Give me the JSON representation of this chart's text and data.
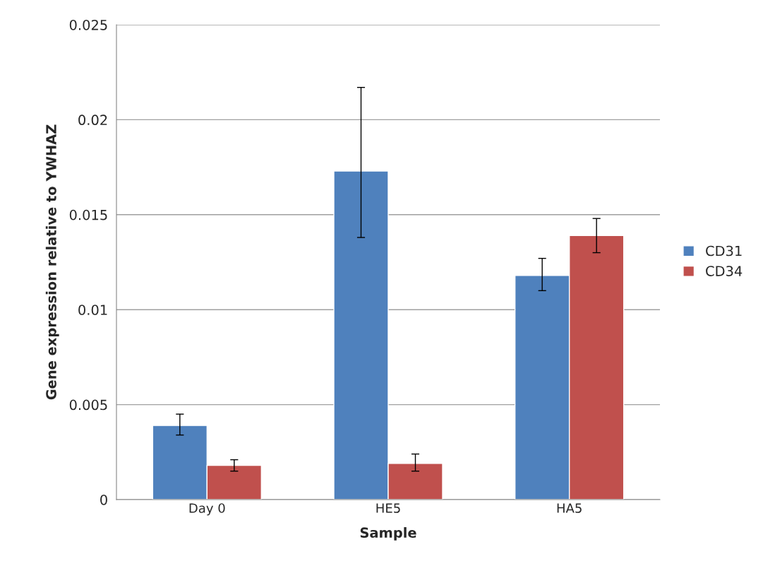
{
  "chart_data": {
    "type": "bar",
    "xlabel": "Sample",
    "ylabel": "Gene expression relative to YWHAZ",
    "categories": [
      "Day 0",
      "HE5",
      "HA5"
    ],
    "series": [
      {
        "name": "CD31",
        "color": "#4f81bd",
        "values": [
          0.0039,
          0.0173,
          0.0118
        ],
        "errors": [
          [
            0.0034,
            0.0045
          ],
          [
            0.0138,
            0.0217
          ],
          [
            0.011,
            0.0127
          ]
        ]
      },
      {
        "name": "CD34",
        "color": "#c0504d",
        "values": [
          0.0018,
          0.0019,
          0.0139
        ],
        "errors": [
          [
            0.0015,
            0.0021
          ],
          [
            0.0015,
            0.0024
          ],
          [
            0.013,
            0.0148
          ]
        ]
      }
    ],
    "ylim": [
      0,
      0.025
    ],
    "yticks": [
      0,
      0.005,
      0.01,
      0.015,
      0.02,
      0.025
    ],
    "grid": "y",
    "legend": "right"
  }
}
